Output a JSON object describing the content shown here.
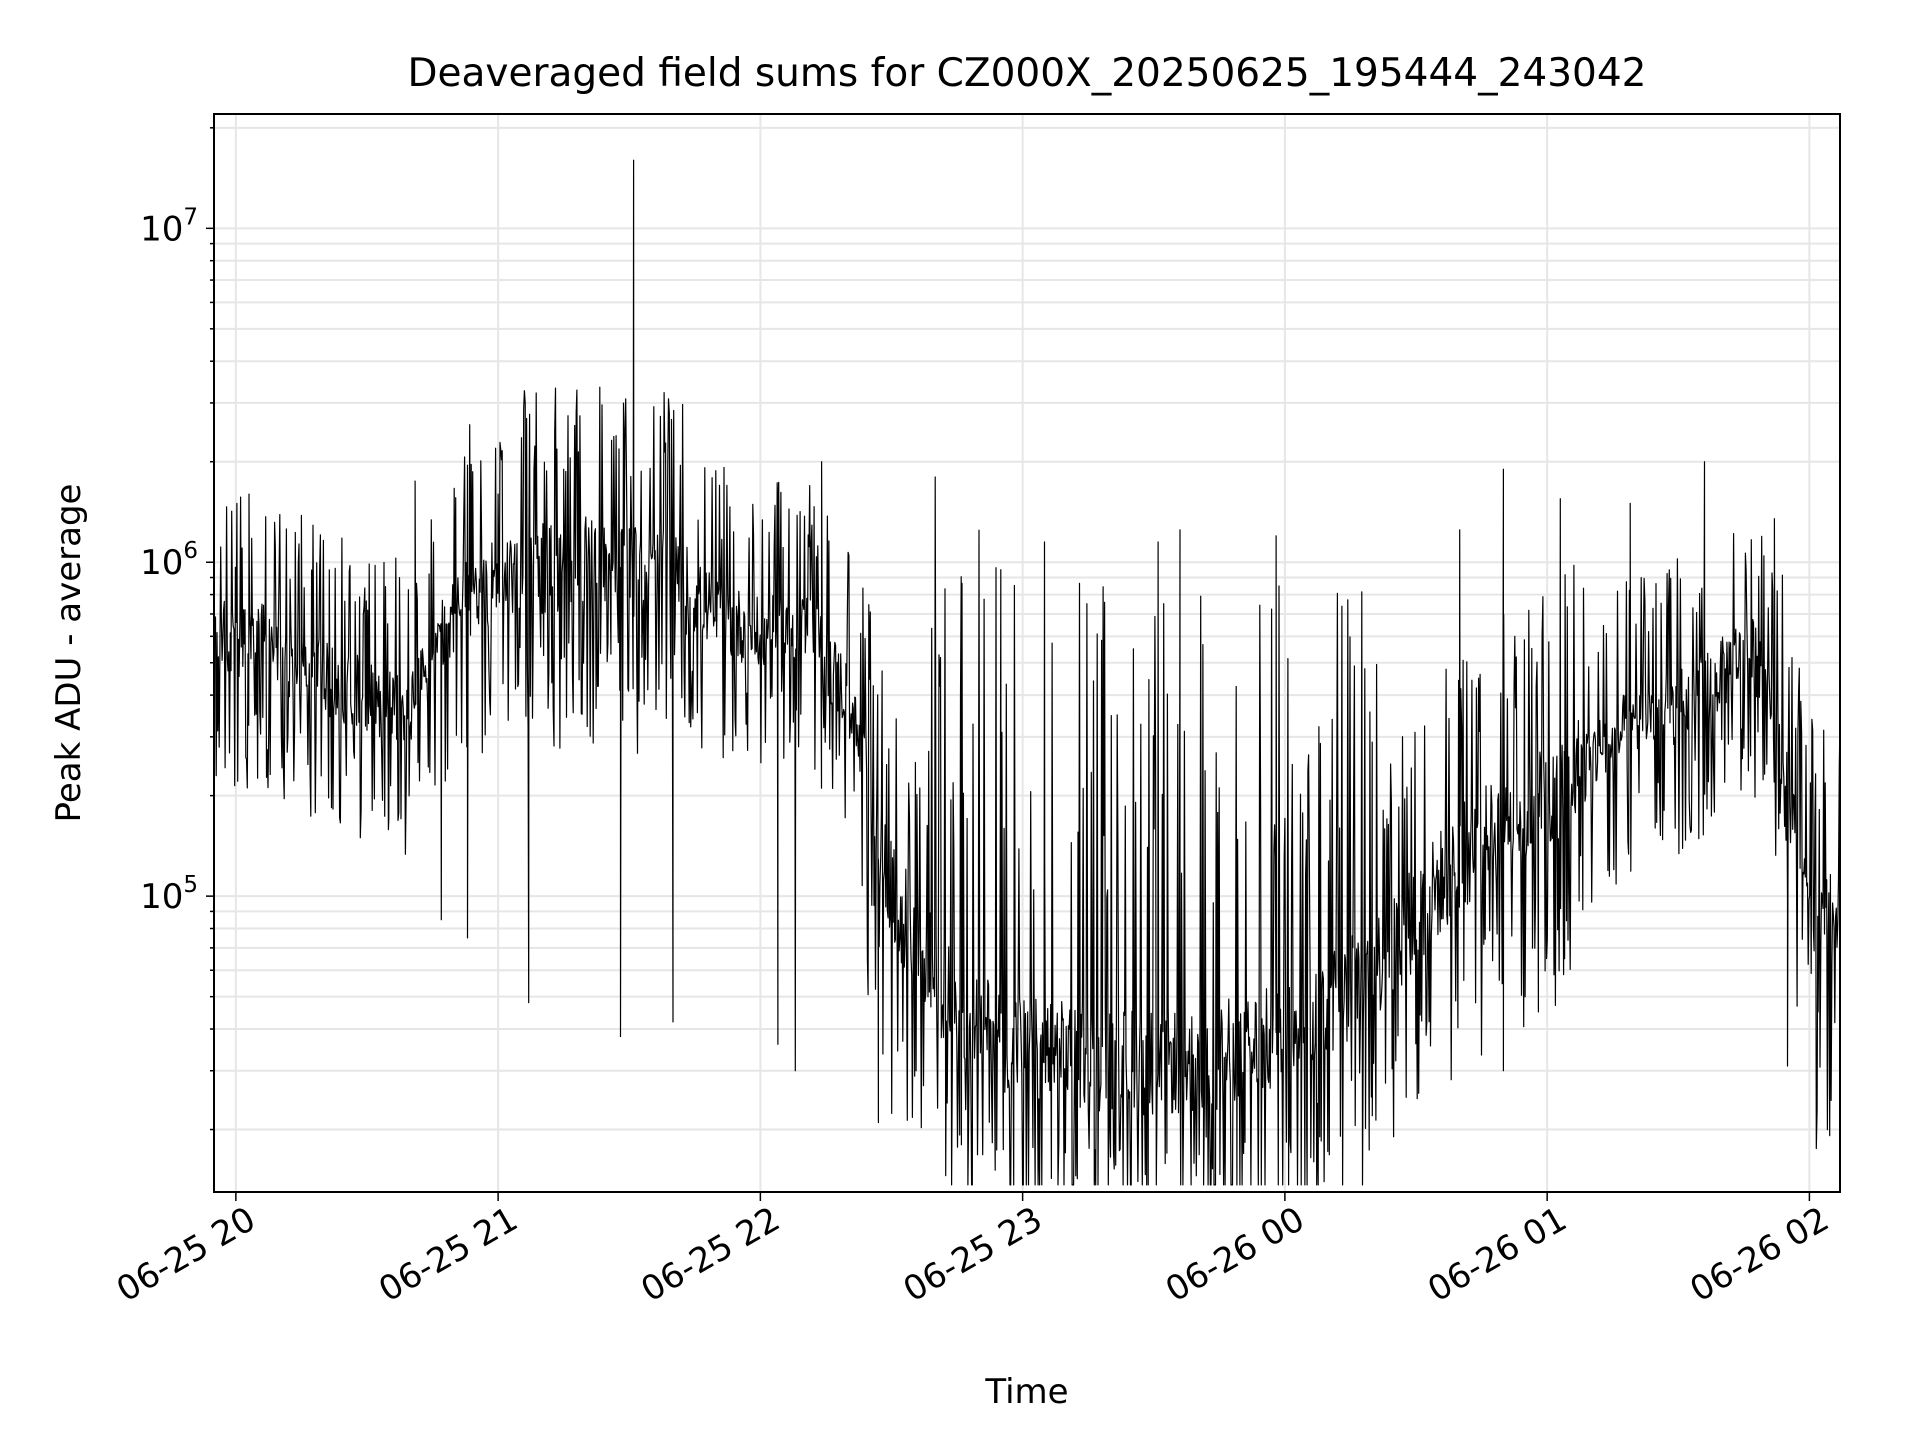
{
  "chart_data": {
    "type": "line",
    "title": "Deaveraged field sums for CZ000X_20250625_195444_243042",
    "xlabel": "Time",
    "ylabel": "Peak ADU - average",
    "yscale": "log",
    "xlim": [
      "2025-06-25 19:55",
      "2025-06-26 02:07"
    ],
    "ylim": [
      13000,
      22000000
    ],
    "x_ticks": [
      {
        "value": "2025-06-25 20:00",
        "label": "06-25 20"
      },
      {
        "value": "2025-06-25 21:00",
        "label": "06-25 21"
      },
      {
        "value": "2025-06-25 22:00",
        "label": "06-25 22"
      },
      {
        "value": "2025-06-25 23:00",
        "label": "06-25 23"
      },
      {
        "value": "2025-06-26 00:00",
        "label": "06-26 00"
      },
      {
        "value": "2025-06-26 01:00",
        "label": "06-26 01"
      },
      {
        "value": "2025-06-26 02:00",
        "label": "06-26 02"
      }
    ],
    "y_ticks": [
      {
        "value": 100000,
        "base": "10",
        "exp": "5"
      },
      {
        "value": 1000000,
        "base": "10",
        "exp": "6"
      },
      {
        "value": 10000000,
        "base": "10",
        "exp": "7"
      }
    ],
    "grid": true,
    "line_color": "#000000",
    "grid_color": "#e6e6e6",
    "series": [
      {
        "name": "",
        "points": [
          [
            "2025-06-25 19:55",
            650000
          ],
          [
            "2025-06-25 20:00",
            550000
          ],
          [
            "2025-06-25 20:05",
            600000
          ],
          [
            "2025-06-25 20:10",
            520000
          ],
          [
            "2025-06-25 20:15",
            480000
          ],
          [
            "2025-06-25 20:20",
            450000
          ],
          [
            "2025-06-25 20:25",
            420000
          ],
          [
            "2025-06-25 20:30",
            400000
          ],
          [
            "2025-06-25 20:35",
            380000
          ],
          [
            "2025-06-25 20:40",
            360000
          ],
          [
            "2025-06-25 20:45",
            520000
          ],
          [
            "2025-06-25 20:50",
            700000
          ],
          [
            "2025-06-25 20:55",
            850000
          ],
          [
            "2025-06-25 21:00",
            900000
          ],
          [
            "2025-06-25 21:10",
            950000
          ],
          [
            "2025-06-25 21:20",
            1000000
          ],
          [
            "2025-06-25 21:30",
            950000
          ],
          [
            "2025-06-25 21:40",
            900000
          ],
          [
            "2025-06-25 21:50",
            700000
          ],
          [
            "2025-06-25 22:00",
            600000
          ],
          [
            "2025-06-25 22:10",
            650000
          ],
          [
            "2025-06-25 22:20",
            400000
          ],
          [
            "2025-06-25 22:30",
            100000
          ],
          [
            "2025-06-25 22:45",
            45000
          ],
          [
            "2025-06-25 23:00",
            35000
          ],
          [
            "2025-06-25 23:20",
            32000
          ],
          [
            "2025-06-25 23:40",
            32000
          ],
          [
            "2025-06-26 00:00",
            38000
          ],
          [
            "2025-06-26 00:20",
            60000
          ],
          [
            "2025-06-26 00:40",
            130000
          ],
          [
            "2025-06-26 01:00",
            200000
          ],
          [
            "2025-06-26 01:10",
            260000
          ],
          [
            "2025-06-26 01:20",
            330000
          ],
          [
            "2025-06-26 01:30",
            370000
          ],
          [
            "2025-06-26 01:40",
            460000
          ],
          [
            "2025-06-26 01:45",
            560000
          ],
          [
            "2025-06-26 01:50",
            480000
          ],
          [
            "2025-06-26 01:55",
            200000
          ],
          [
            "2025-06-26 02:00",
            75000
          ],
          [
            "2025-06-26 02:07",
            85000
          ]
        ],
        "peaks": [
          [
            "2025-06-25 20:03",
            1600000
          ],
          [
            "2025-06-25 20:15",
            1380000
          ],
          [
            "2025-06-25 20:41",
            1750000
          ],
          [
            "2025-06-25 20:53",
            1950000
          ],
          [
            "2025-06-25 21:00",
            1600000
          ],
          [
            "2025-06-25 21:15",
            1900000
          ],
          [
            "2025-06-25 21:31",
            16000000
          ],
          [
            "2025-06-25 22:14",
            2000000
          ],
          [
            "2025-06-25 22:40",
            1800000
          ],
          [
            "2025-06-25 22:55",
            950000
          ],
          [
            "2025-06-25 23:05",
            1150000
          ],
          [
            "2025-06-25 23:31",
            1150000
          ],
          [
            "2025-06-25 23:36",
            1250000
          ],
          [
            "2025-06-25 23:58",
            1200000
          ],
          [
            "2025-06-26 00:40",
            1250000
          ],
          [
            "2025-06-26 00:50",
            1900000
          ],
          [
            "2025-06-26 01:03",
            1550000
          ],
          [
            "2025-06-26 01:19",
            1500000
          ],
          [
            "2025-06-26 01:36",
            2000000
          ],
          [
            "2025-06-26 01:52",
            1350000
          ]
        ],
        "troughs": [
          [
            "2025-06-25 20:35",
            170000
          ],
          [
            "2025-06-25 20:47",
            85000
          ],
          [
            "2025-06-25 20:53",
            75000
          ],
          [
            "2025-06-25 21:07",
            48000
          ],
          [
            "2025-06-25 21:28",
            38000
          ],
          [
            "2025-06-25 21:40",
            42000
          ],
          [
            "2025-06-25 22:04",
            36000
          ],
          [
            "2025-06-25 22:08",
            30000
          ],
          [
            "2025-06-25 22:27",
            21000
          ],
          [
            "2025-06-25 22:46",
            18000
          ],
          [
            "2025-06-25 23:20",
            20000
          ],
          [
            "2025-06-25 23:33",
            17000
          ],
          [
            "2025-06-25 23:42",
            19000
          ],
          [
            "2025-06-26 00:05",
            20000
          ],
          [
            "2025-06-26 00:20",
            22000
          ],
          [
            "2025-06-26 00:50",
            30000
          ],
          [
            "2025-06-26 00:58",
            45000
          ],
          [
            "2025-06-26 01:04",
            65000
          ],
          [
            "2025-06-26 01:55",
            31000
          ],
          [
            "2025-06-26 02:02",
            45000
          ]
        ]
      }
    ]
  }
}
